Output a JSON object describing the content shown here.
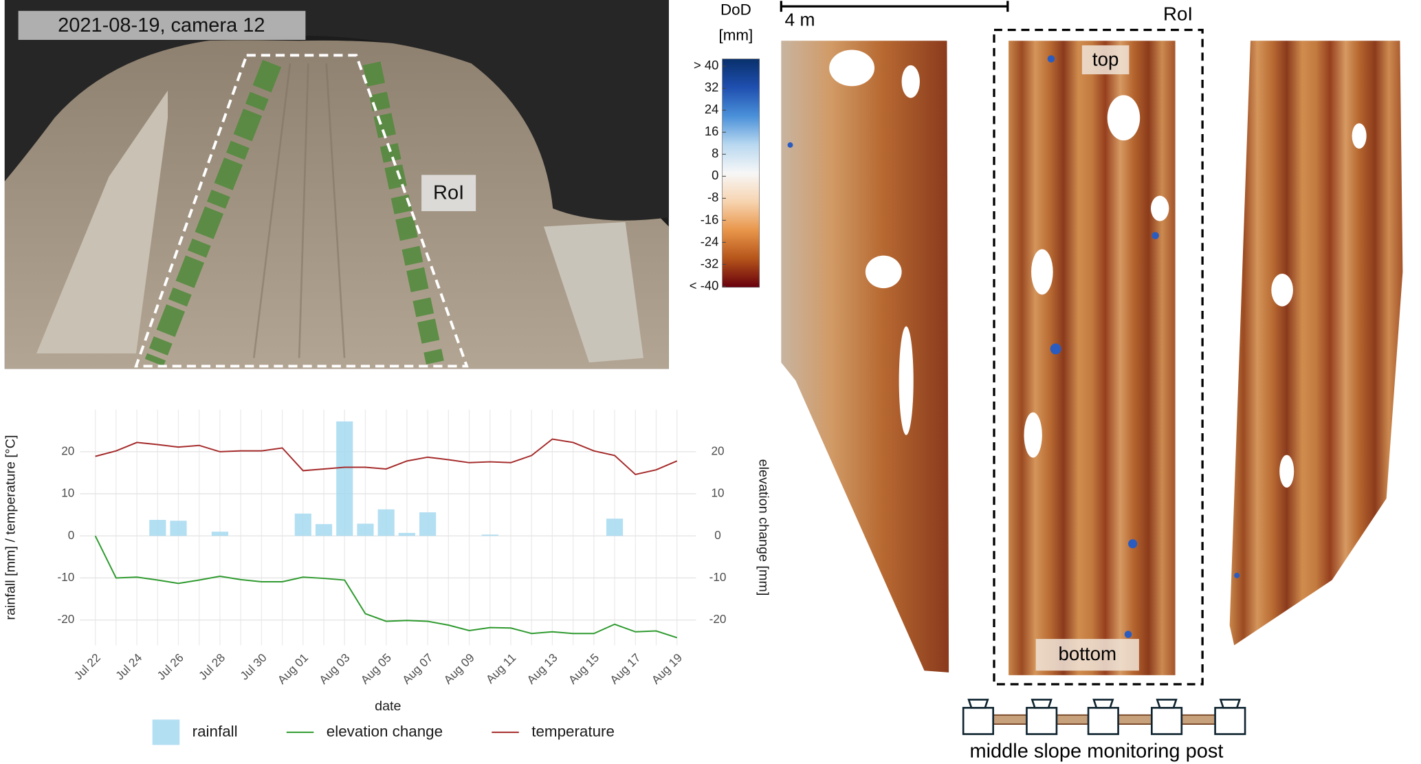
{
  "photo": {
    "caption": "2021-08-19, camera 12",
    "roi_label": "RoI"
  },
  "map": {
    "scale_bar": "4 m",
    "roi_label": "RoI",
    "top_label": "top",
    "bottom_label": "bottom",
    "post_label": "middle slope monitoring post"
  },
  "chart_data": [
    {
      "type": "combo",
      "xlabel": "date",
      "ylabel": "rainfall [mm] / temperature [°C]",
      "y2label": "elevation change [mm]",
      "categories": [
        "Jul 22",
        null,
        "Jul 24",
        null,
        "Jul 26",
        null,
        "Jul 28",
        null,
        "Jul 30",
        null,
        "Aug 01",
        null,
        "Aug 03",
        null,
        "Aug 05",
        null,
        "Aug 07",
        null,
        "Aug 09",
        null,
        "Aug 11",
        null,
        "Aug 13",
        null,
        "Aug 15",
        null,
        "Aug 17",
        null,
        "Aug 19"
      ],
      "ylim": [
        -26,
        30
      ],
      "yticks": [
        -20,
        -10,
        0,
        10,
        20
      ],
      "y2lim": [
        -26,
        30
      ],
      "y2ticks": [
        -20,
        -10,
        0,
        10,
        20
      ],
      "grid": true,
      "legend": "bottom",
      "series": [
        {
          "name": "rainfall",
          "type": "bar",
          "color": "#a6d9f0",
          "values": [
            0,
            0,
            0,
            3.8,
            3.6,
            0,
            1.0,
            0,
            0,
            0,
            5.3,
            2.8,
            27.2,
            2.9,
            6.3,
            0.7,
            5.6,
            0,
            0,
            0.3,
            0,
            0,
            0,
            0,
            0,
            4.1,
            0,
            0,
            0
          ]
        },
        {
          "name": "elevation change",
          "type": "line",
          "axis": "y2",
          "color": "#2e9a2e",
          "values": [
            0,
            -10,
            -9.8,
            -10.5,
            -11.3,
            -10.5,
            -9.6,
            -10.4,
            -10.9,
            -10.9,
            -9.8,
            -10.1,
            -10.5,
            -18.5,
            -20.3,
            -20.1,
            -20.3,
            -21.2,
            -22.5,
            -21.8,
            -21.9,
            -23.2,
            -22.8,
            -23.2,
            -23.2,
            -21,
            -22.8,
            -22.6,
            -24.2
          ]
        },
        {
          "name": "temperature",
          "type": "line",
          "color": "#a52a2a",
          "values": [
            18.9,
            20.2,
            22.2,
            21.7,
            21.1,
            21.5,
            20,
            20.2,
            20.2,
            20.9,
            15.5,
            15.9,
            16.3,
            16.3,
            15.9,
            17.8,
            18.7,
            18.1,
            17.4,
            17.6,
            17.4,
            19.1,
            23,
            22.2,
            20.2,
            19.1,
            14.6,
            15.7,
            17.8
          ]
        }
      ]
    },
    {
      "type": "colorbar",
      "title": "DoD",
      "unit": "[mm]",
      "ylim": [
        -40,
        40
      ],
      "yticks": [
        {
          "value": 40,
          "label": "> 40"
        },
        32,
        24,
        16,
        8,
        0,
        -8,
        -16,
        -24,
        -32,
        {
          "value": -40,
          "label": "< -40"
        }
      ],
      "colors": [
        "#67000d",
        "#b5541a",
        "#e8964a",
        "#f7d4b0",
        "#f7f7f7",
        "#b8d8f0",
        "#4a90d9",
        "#1f4fb0",
        "#08306b"
      ]
    }
  ]
}
